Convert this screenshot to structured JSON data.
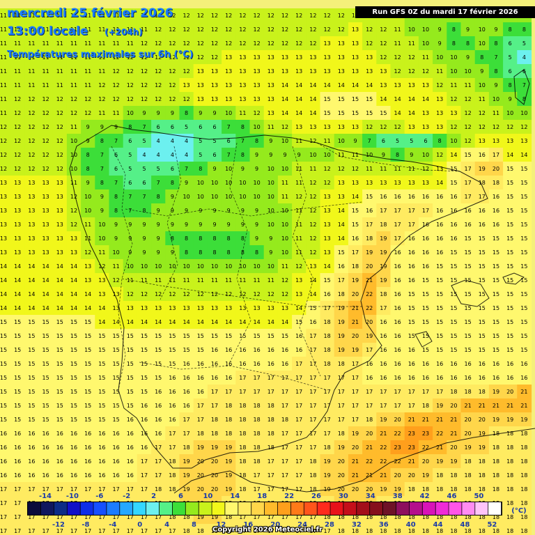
{
  "header": {
    "date": "mercredi 25 février 2026",
    "time": "13:00 locale",
    "lead": "(+204h)",
    "parameter": "Températures maximales sur 6h (°C)"
  },
  "run_label": "Run GFS 0Z du mardi 17 février 2026",
  "copyright": "Copyright 2026 Meteociel.fr",
  "legend": {
    "unit": "(°C)",
    "top_labels": [
      "-14",
      "-10",
      "-6",
      "-2",
      "2",
      "6",
      "10",
      "14",
      "18",
      "22",
      "26",
      "30",
      "34",
      "38",
      "42",
      "46",
      "50"
    ],
    "bottom_labels": [
      "-12",
      "-8",
      "-4",
      "0",
      "4",
      "8",
      "12",
      "16",
      "20",
      "24",
      "28",
      "32",
      "36",
      "40",
      "44",
      "48",
      "52"
    ],
    "colors": [
      "#0b0b3b",
      "#10175e",
      "#0d2c86",
      "#1010c8",
      "#0d2ee8",
      "#1650ff",
      "#1c7cff",
      "#25a8ff",
      "#34d7ff",
      "#6cf0ef",
      "#55f088",
      "#3cde39",
      "#95ea1d",
      "#c9f21b",
      "#f1f71a",
      "#fff86e",
      "#ffeb61",
      "#ffd64a",
      "#ffbb2b",
      "#ff9f1c",
      "#ff7a19",
      "#ff551b",
      "#ff2a1d",
      "#e8121a",
      "#c50f1a",
      "#a30e1a",
      "#86101c",
      "#6e1227",
      "#8d0f5e",
      "#b40e8c",
      "#d813b8",
      "#ef2bd7",
      "#ff55e8",
      "#ff8cf2",
      "#ffc4f9",
      "#ffffff"
    ]
  },
  "grid_values": [
    [
      11,
      11,
      11,
      11,
      11,
      11,
      11,
      11,
      11,
      11,
      11,
      11,
      12,
      12,
      12,
      12,
      12,
      12,
      12,
      12,
      12,
      12,
      12,
      12,
      12,
      12,
      11,
      11,
      11,
      10,
      9,
      9,
      9,
      9,
      9,
      9,
      9,
      9
    ],
    [
      11,
      11,
      11,
      11,
      11,
      11,
      11,
      11,
      11,
      11,
      11,
      12,
      12,
      12,
      12,
      12,
      12,
      12,
      12,
      12,
      12,
      12,
      12,
      12,
      12,
      13,
      12,
      12,
      11,
      10,
      10,
      9,
      8,
      9,
      10,
      9,
      8,
      8
    ],
    [
      11,
      11,
      11,
      11,
      11,
      11,
      11,
      11,
      11,
      11,
      12,
      12,
      12,
      12,
      12,
      12,
      12,
      12,
      12,
      12,
      12,
      12,
      12,
      13,
      13,
      13,
      12,
      12,
      11,
      11,
      10,
      9,
      8,
      8,
      10,
      8,
      6,
      5
    ],
    [
      11,
      11,
      11,
      11,
      11,
      11,
      11,
      11,
      12,
      12,
      12,
      12,
      12,
      12,
      12,
      12,
      13,
      13,
      13,
      13,
      13,
      13,
      13,
      13,
      13,
      13,
      13,
      12,
      12,
      12,
      11,
      10,
      10,
      9,
      8,
      7,
      5,
      4
    ],
    [
      11,
      11,
      11,
      11,
      11,
      11,
      11,
      11,
      12,
      12,
      12,
      12,
      12,
      12,
      13,
      13,
      13,
      13,
      13,
      13,
      13,
      13,
      13,
      13,
      13,
      13,
      13,
      13,
      12,
      12,
      12,
      11,
      10,
      10,
      9,
      8,
      6,
      6
    ],
    [
      11,
      11,
      11,
      11,
      11,
      11,
      11,
      12,
      12,
      12,
      12,
      12,
      12,
      13,
      13,
      13,
      13,
      13,
      13,
      13,
      14,
      14,
      14,
      14,
      14,
      14,
      14,
      13,
      13,
      13,
      13,
      12,
      11,
      11,
      10,
      9,
      8,
      7
    ],
    [
      11,
      12,
      12,
      12,
      12,
      12,
      12,
      12,
      12,
      12,
      12,
      12,
      12,
      12,
      13,
      13,
      13,
      13,
      13,
      13,
      14,
      14,
      14,
      15,
      15,
      15,
      15,
      14,
      14,
      14,
      14,
      13,
      12,
      12,
      11,
      10,
      9,
      8
    ],
    [
      11,
      12,
      12,
      12,
      12,
      12,
      12,
      11,
      11,
      10,
      9,
      9,
      9,
      8,
      9,
      9,
      10,
      11,
      12,
      13,
      14,
      14,
      14,
      15,
      15,
      15,
      15,
      15,
      14,
      14,
      13,
      13,
      13,
      12,
      12,
      11,
      10,
      10
    ],
    [
      12,
      12,
      12,
      12,
      12,
      11,
      9,
      9,
      9,
      8,
      7,
      6,
      6,
      5,
      6,
      6,
      7,
      8,
      10,
      11,
      12,
      13,
      13,
      13,
      13,
      13,
      12,
      12,
      12,
      13,
      13,
      13,
      12,
      12,
      12,
      12,
      12,
      12
    ],
    [
      12,
      12,
      12,
      12,
      12,
      10,
      9,
      8,
      7,
      6,
      5,
      4,
      4,
      4,
      5,
      5,
      6,
      7,
      8,
      9,
      10,
      11,
      12,
      11,
      10,
      9,
      7,
      6,
      5,
      5,
      6,
      8,
      10,
      12,
      13,
      13,
      13,
      13
    ],
    [
      12,
      12,
      12,
      12,
      12,
      10,
      8,
      7,
      6,
      5,
      4,
      4,
      4,
      4,
      5,
      6,
      7,
      8,
      9,
      9,
      9,
      9,
      10,
      10,
      11,
      11,
      10,
      9,
      8,
      9,
      10,
      12,
      14,
      15,
      16,
      17,
      14,
      14
    ],
    [
      12,
      12,
      12,
      12,
      12,
      10,
      8,
      7,
      6,
      5,
      5,
      5,
      6,
      7,
      8,
      9,
      10,
      9,
      9,
      10,
      10,
      11,
      11,
      12,
      12,
      12,
      11,
      11,
      11,
      11,
      12,
      13,
      15,
      17,
      19,
      20,
      15,
      15
    ],
    [
      13,
      13,
      13,
      13,
      13,
      11,
      9,
      8,
      7,
      6,
      6,
      7,
      8,
      9,
      10,
      10,
      10,
      10,
      10,
      10,
      11,
      11,
      12,
      12,
      13,
      13,
      13,
      13,
      13,
      13,
      13,
      14,
      15,
      17,
      18,
      18,
      15,
      15
    ],
    [
      13,
      13,
      13,
      13,
      13,
      12,
      10,
      9,
      8,
      7,
      7,
      8,
      9,
      10,
      10,
      10,
      10,
      10,
      10,
      10,
      11,
      12,
      12,
      13,
      13,
      14,
      15,
      16,
      16,
      16,
      16,
      16,
      16,
      17,
      17,
      16,
      15,
      15
    ],
    [
      13,
      13,
      13,
      13,
      13,
      12,
      10,
      9,
      8,
      7,
      8,
      9,
      9,
      9,
      9,
      9,
      9,
      9,
      9,
      10,
      10,
      11,
      12,
      13,
      14,
      15,
      16,
      17,
      17,
      17,
      17,
      16,
      16,
      16,
      16,
      16,
      15,
      15
    ],
    [
      13,
      13,
      13,
      13,
      13,
      12,
      11,
      10,
      9,
      9,
      9,
      9,
      9,
      9,
      9,
      9,
      9,
      9,
      9,
      10,
      10,
      11,
      12,
      13,
      14,
      15,
      17,
      18,
      17,
      17,
      16,
      16,
      16,
      16,
      16,
      16,
      15,
      15
    ],
    [
      13,
      13,
      13,
      13,
      13,
      13,
      11,
      10,
      9,
      9,
      9,
      9,
      8,
      8,
      8,
      8,
      8,
      8,
      9,
      9,
      10,
      11,
      12,
      13,
      14,
      16,
      18,
      19,
      17,
      16,
      16,
      16,
      16,
      15,
      15,
      15,
      15,
      15
    ],
    [
      13,
      13,
      13,
      13,
      13,
      13,
      12,
      11,
      10,
      9,
      9,
      9,
      9,
      8,
      8,
      8,
      8,
      8,
      8,
      9,
      10,
      11,
      12,
      13,
      15,
      17,
      19,
      19,
      16,
      16,
      16,
      16,
      15,
      15,
      15,
      15,
      15,
      15
    ],
    [
      14,
      14,
      14,
      14,
      14,
      14,
      13,
      12,
      11,
      10,
      10,
      10,
      10,
      10,
      10,
      10,
      10,
      10,
      10,
      10,
      11,
      12,
      13,
      14,
      16,
      18,
      20,
      19,
      16,
      16,
      16,
      15,
      15,
      15,
      15,
      15,
      15,
      15
    ],
    [
      14,
      14,
      14,
      14,
      14,
      14,
      13,
      13,
      12,
      11,
      11,
      11,
      11,
      11,
      11,
      11,
      11,
      11,
      11,
      11,
      12,
      13,
      14,
      15,
      17,
      19,
      21,
      19,
      16,
      16,
      15,
      15,
      15,
      15,
      15,
      15,
      15,
      15
    ],
    [
      14,
      14,
      14,
      14,
      14,
      14,
      14,
      13,
      13,
      12,
      12,
      12,
      12,
      12,
      12,
      12,
      12,
      12,
      12,
      12,
      12,
      13,
      14,
      16,
      18,
      20,
      22,
      18,
      16,
      15,
      15,
      15,
      15,
      15,
      15,
      15,
      15,
      15
    ],
    [
      14,
      14,
      14,
      14,
      14,
      14,
      14,
      14,
      13,
      13,
      13,
      13,
      13,
      13,
      13,
      13,
      13,
      13,
      13,
      13,
      13,
      14,
      15,
      17,
      19,
      21,
      22,
      17,
      16,
      15,
      15,
      15,
      15,
      15,
      15,
      15,
      15,
      15
    ],
    [
      15,
      15,
      15,
      15,
      15,
      15,
      15,
      14,
      14,
      14,
      14,
      14,
      14,
      14,
      14,
      14,
      14,
      14,
      14,
      14,
      14,
      15,
      16,
      18,
      19,
      21,
      20,
      16,
      16,
      15,
      15,
      15,
      15,
      15,
      15,
      15,
      15,
      15
    ],
    [
      15,
      15,
      15,
      15,
      15,
      15,
      15,
      15,
      15,
      15,
      15,
      15,
      15,
      15,
      15,
      15,
      15,
      15,
      15,
      15,
      15,
      16,
      17,
      18,
      19,
      20,
      19,
      16,
      16,
      15,
      15,
      15,
      15,
      15,
      15,
      15,
      15,
      15
    ],
    [
      15,
      15,
      15,
      15,
      15,
      15,
      15,
      15,
      15,
      15,
      15,
      15,
      15,
      15,
      15,
      16,
      16,
      16,
      16,
      16,
      16,
      16,
      17,
      18,
      19,
      19,
      17,
      16,
      16,
      16,
      15,
      15,
      15,
      15,
      15,
      15,
      15,
      15
    ],
    [
      15,
      15,
      15,
      15,
      15,
      15,
      15,
      15,
      15,
      15,
      15,
      15,
      15,
      16,
      16,
      16,
      16,
      16,
      16,
      16,
      16,
      17,
      17,
      18,
      18,
      17,
      16,
      16,
      16,
      16,
      16,
      16,
      16,
      16,
      16,
      16,
      16,
      16
    ],
    [
      15,
      15,
      15,
      15,
      15,
      15,
      15,
      15,
      15,
      15,
      15,
      15,
      16,
      16,
      16,
      16,
      16,
      17,
      17,
      17,
      17,
      17,
      17,
      17,
      17,
      17,
      16,
      16,
      16,
      16,
      16,
      16,
      16,
      16,
      16,
      16,
      16,
      16
    ],
    [
      15,
      15,
      15,
      15,
      15,
      15,
      15,
      15,
      15,
      15,
      15,
      16,
      16,
      16,
      16,
      17,
      17,
      17,
      17,
      17,
      17,
      17,
      17,
      17,
      17,
      17,
      17,
      17,
      17,
      17,
      17,
      17,
      18,
      18,
      18,
      19,
      20,
      21
    ],
    [
      15,
      15,
      15,
      15,
      15,
      15,
      15,
      15,
      15,
      15,
      16,
      16,
      16,
      16,
      17,
      17,
      18,
      18,
      18,
      18,
      17,
      17,
      17,
      17,
      17,
      17,
      17,
      17,
      17,
      17,
      18,
      19,
      20,
      21,
      21,
      21,
      21,
      21
    ],
    [
      15,
      15,
      15,
      15,
      15,
      15,
      15,
      15,
      15,
      16,
      16,
      16,
      16,
      17,
      17,
      18,
      18,
      18,
      18,
      18,
      18,
      17,
      17,
      17,
      17,
      17,
      18,
      19,
      20,
      21,
      21,
      21,
      21,
      20,
      20,
      19,
      19,
      19
    ],
    [
      16,
      16,
      16,
      16,
      16,
      16,
      16,
      16,
      16,
      16,
      16,
      16,
      17,
      17,
      18,
      18,
      18,
      18,
      18,
      18,
      17,
      17,
      17,
      17,
      18,
      19,
      20,
      21,
      22,
      23,
      23,
      22,
      21,
      20,
      19,
      18,
      18,
      18
    ],
    [
      16,
      16,
      16,
      16,
      16,
      16,
      16,
      16,
      16,
      16,
      16,
      17,
      17,
      18,
      19,
      19,
      19,
      18,
      18,
      18,
      17,
      17,
      17,
      18,
      19,
      20,
      21,
      22,
      23,
      23,
      22,
      21,
      20,
      19,
      19,
      18,
      18,
      18
    ],
    [
      16,
      16,
      16,
      16,
      16,
      16,
      16,
      16,
      16,
      16,
      17,
      17,
      18,
      19,
      20,
      20,
      19,
      18,
      18,
      17,
      17,
      17,
      18,
      19,
      20,
      21,
      22,
      22,
      22,
      21,
      20,
      19,
      19,
      18,
      18,
      18,
      18,
      18
    ],
    [
      16,
      16,
      16,
      16,
      16,
      16,
      16,
      16,
      16,
      16,
      17,
      17,
      18,
      19,
      20,
      20,
      19,
      18,
      17,
      17,
      17,
      17,
      18,
      19,
      20,
      21,
      21,
      21,
      20,
      20,
      19,
      18,
      18,
      18,
      18,
      18,
      18,
      18
    ],
    [
      17,
      17,
      17,
      17,
      17,
      17,
      17,
      17,
      17,
      17,
      17,
      18,
      18,
      19,
      20,
      20,
      19,
      18,
      17,
      17,
      17,
      17,
      18,
      19,
      20,
      20,
      20,
      19,
      19,
      18,
      18,
      18,
      18,
      18,
      18,
      18,
      18,
      18
    ],
    [
      17,
      17,
      17,
      17,
      17,
      17,
      17,
      17,
      17,
      17,
      17,
      18,
      18,
      19,
      19,
      19,
      18,
      18,
      17,
      17,
      17,
      17,
      18,
      18,
      19,
      19,
      19,
      18,
      18,
      18,
      18,
      18,
      18,
      18,
      18,
      18,
      18,
      18
    ],
    [
      17,
      17,
      17,
      17,
      17,
      17,
      17,
      17,
      17,
      17,
      17,
      17,
      18,
      18,
      19,
      19,
      18,
      17,
      17,
      17,
      17,
      17,
      17,
      18,
      18,
      18,
      18,
      18,
      18,
      18,
      18,
      18,
      18,
      18,
      18,
      18,
      18,
      18
    ],
    [
      17,
      17,
      17,
      17,
      17,
      17,
      17,
      17,
      17,
      17,
      17,
      17,
      17,
      18,
      18,
      18,
      18,
      17,
      17,
      17,
      17,
      17,
      17,
      17,
      18,
      18,
      18,
      18,
      18,
      18,
      18,
      18,
      18,
      18,
      18,
      18,
      18,
      18
    ]
  ]
}
